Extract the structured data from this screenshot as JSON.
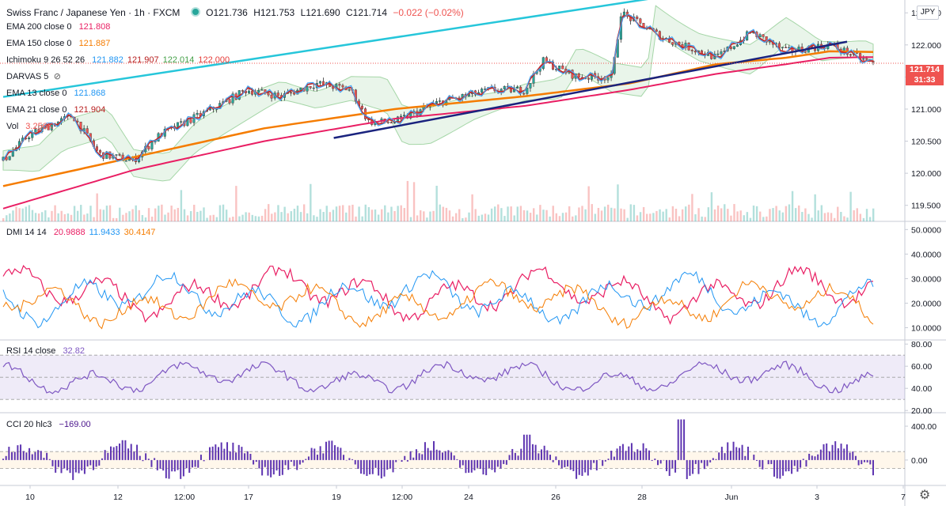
{
  "header": {
    "symbol": "Swiss Franc / Japanese Yen · 1h · FXCM",
    "open": "O121.736",
    "high": "H121.753",
    "low": "L121.690",
    "close": "C121.714",
    "change": "−0.022 (−0.02%)",
    "currency": "JPY",
    "last_price": "121.714",
    "countdown": "31:33"
  },
  "indicators": [
    {
      "name": "EMA 200 close 0",
      "values": [
        {
          "text": "121.808",
          "color": "#e91e63"
        }
      ]
    },
    {
      "name": "EMA 150 close 0",
      "values": [
        {
          "text": "121.887",
          "color": "#f57c00"
        }
      ]
    },
    {
      "name": "Ichimoku 9 26 52 26",
      "values": [
        {
          "text": "121.882",
          "color": "#2196f3"
        },
        {
          "text": "121.907",
          "color": "#b71c1c"
        },
        {
          "text": "122.014",
          "color": "#43a047"
        },
        {
          "text": "122.000",
          "color": "#e53935"
        }
      ]
    },
    {
      "name": "DARVAS 5",
      "values": [],
      "hidden": true
    },
    {
      "name": "EMA 13 close 0",
      "values": [
        {
          "text": "121.868",
          "color": "#2196f3"
        }
      ]
    },
    {
      "name": "EMA 21 close 0",
      "values": [
        {
          "text": "121.904",
          "color": "#b71c1c"
        }
      ]
    },
    {
      "name": "Vol",
      "values": [
        {
          "text": "3.256K",
          "color": "#ef5350"
        }
      ]
    }
  ],
  "panes": {
    "dmi": {
      "name": "DMI 14 14",
      "values": [
        {
          "text": "20.9888",
          "color": "#e91e63"
        },
        {
          "text": "11.9433",
          "color": "#2196f3"
        },
        {
          "text": "30.4147",
          "color": "#f57c00"
        }
      ]
    },
    "rsi": {
      "name": "RSI 14 close",
      "values": [
        {
          "text": "32.82",
          "color": "#7e57c2"
        }
      ]
    },
    "cci": {
      "name": "CCI 20 hlc3",
      "values": [
        {
          "text": "−169.00",
          "color": "#4a148c"
        }
      ]
    }
  },
  "chart_data": {
    "type": "candlestick",
    "price_axis": {
      "ticks": [
        "122.500",
        "122.000",
        "121.500",
        "121.000",
        "120.500",
        "120.000",
        "119.500"
      ],
      "range": [
        119.25,
        122.7
      ]
    },
    "dmi_axis": {
      "ticks": [
        "50.0000",
        "40.0000",
        "30.0000",
        "20.0000",
        "10.0000"
      ],
      "range": [
        5,
        53
      ]
    },
    "rsi_axis": {
      "ticks": [
        "80.00",
        "60.00",
        "40.00",
        "20.00"
      ],
      "range": [
        18,
        83
      ],
      "band": [
        30,
        70
      ]
    },
    "cci_axis": {
      "ticks": [
        "400.00",
        "0.00"
      ],
      "range": [
        -300,
        550
      ],
      "band": [
        -100,
        100
      ]
    },
    "time_labels": [
      "10",
      "12",
      "12:00",
      "17",
      "19",
      "12:00",
      "24",
      "26",
      "28",
      "Jun",
      "3",
      "7"
    ],
    "trendlines": [
      {
        "name": "upper-channel",
        "from": [
          0,
          121.19
        ],
        "to": [
          1.0,
          122.77
        ],
        "color": "#26c6da"
      },
      {
        "name": "lower-channel",
        "from": [
          0.38,
          120.55
        ],
        "to": [
          0.97,
          122.05
        ],
        "color": "#1a237e"
      }
    ],
    "ema_200_path": [
      [
        0,
        119.45
      ],
      [
        0.15,
        120.05
      ],
      [
        0.3,
        120.5
      ],
      [
        0.45,
        120.85
      ],
      [
        0.6,
        121.05
      ],
      [
        0.72,
        121.3
      ],
      [
        0.82,
        121.55
      ],
      [
        0.9,
        121.7
      ],
      [
        0.95,
        121.8
      ],
      [
        1.0,
        121.81
      ]
    ],
    "ema_150_path": [
      [
        0,
        119.8
      ],
      [
        0.15,
        120.25
      ],
      [
        0.3,
        120.7
      ],
      [
        0.45,
        121.0
      ],
      [
        0.6,
        121.2
      ],
      [
        0.72,
        121.4
      ],
      [
        0.82,
        121.7
      ],
      [
        0.9,
        121.8
      ],
      [
        0.95,
        121.9
      ],
      [
        1.0,
        121.89
      ]
    ],
    "price_path": [
      [
        0,
        120.2
      ],
      [
        0.03,
        120.6
      ],
      [
        0.08,
        120.9
      ],
      [
        0.11,
        120.3
      ],
      [
        0.15,
        120.2
      ],
      [
        0.18,
        120.6
      ],
      [
        0.24,
        121.0
      ],
      [
        0.28,
        121.3
      ],
      [
        0.32,
        121.2
      ],
      [
        0.36,
        121.4
      ],
      [
        0.4,
        121.3
      ],
      [
        0.42,
        120.8
      ],
      [
        0.45,
        120.8
      ],
      [
        0.5,
        121.1
      ],
      [
        0.56,
        121.3
      ],
      [
        0.6,
        121.3
      ],
      [
        0.62,
        121.75
      ],
      [
        0.66,
        121.5
      ],
      [
        0.7,
        121.5
      ],
      [
        0.71,
        122.5
      ],
      [
        0.76,
        122.1
      ],
      [
        0.82,
        121.8
      ],
      [
        0.86,
        122.2
      ],
      [
        0.9,
        121.9
      ],
      [
        0.95,
        122.0
      ],
      [
        1.0,
        121.71
      ]
    ]
  }
}
